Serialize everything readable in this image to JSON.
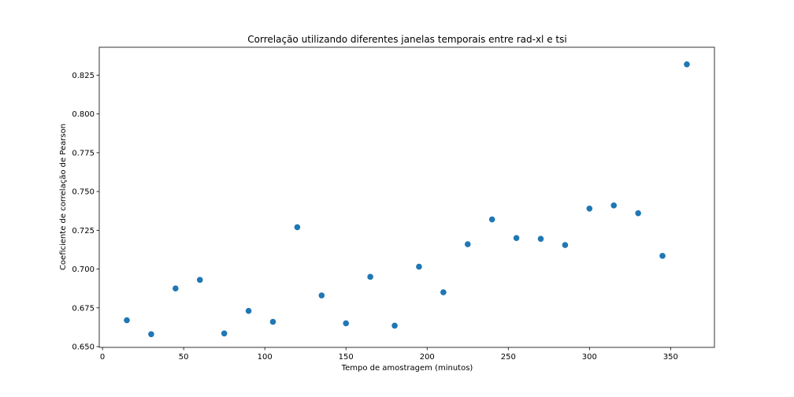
{
  "chart_data": {
    "type": "scatter",
    "title": "Correlação utilizando diferentes janelas temporais entre rad-xl e tsi",
    "xlabel": "Tempo de amostragem (minutos)",
    "ylabel": "Coeficiente de correlação de Pearson",
    "xlim": [
      -2,
      377
    ],
    "ylim": [
      0.6495,
      0.843
    ],
    "xticks": [
      0,
      50,
      100,
      150,
      200,
      250,
      300,
      350
    ],
    "xtick_labels": [
      "0",
      "50",
      "100",
      "150",
      "200",
      "250",
      "300",
      "350"
    ],
    "yticks": [
      0.65,
      0.675,
      0.7,
      0.725,
      0.75,
      0.775,
      0.8,
      0.825
    ],
    "ytick_labels": [
      "0.650",
      "0.675",
      "0.700",
      "0.725",
      "0.750",
      "0.775",
      "0.800",
      "0.825"
    ],
    "grid": false,
    "color": "#1f77b4",
    "points": [
      {
        "x": 15,
        "y": 0.667
      },
      {
        "x": 30,
        "y": 0.658
      },
      {
        "x": 45,
        "y": 0.6875
      },
      {
        "x": 60,
        "y": 0.693
      },
      {
        "x": 75,
        "y": 0.6585
      },
      {
        "x": 90,
        "y": 0.673
      },
      {
        "x": 105,
        "y": 0.666
      },
      {
        "x": 120,
        "y": 0.727
      },
      {
        "x": 135,
        "y": 0.683
      },
      {
        "x": 150,
        "y": 0.665
      },
      {
        "x": 165,
        "y": 0.695
      },
      {
        "x": 180,
        "y": 0.6635
      },
      {
        "x": 195,
        "y": 0.7015
      },
      {
        "x": 210,
        "y": 0.685
      },
      {
        "x": 225,
        "y": 0.716
      },
      {
        "x": 240,
        "y": 0.732
      },
      {
        "x": 255,
        "y": 0.72
      },
      {
        "x": 270,
        "y": 0.7195
      },
      {
        "x": 285,
        "y": 0.7155
      },
      {
        "x": 300,
        "y": 0.739
      },
      {
        "x": 315,
        "y": 0.741
      },
      {
        "x": 330,
        "y": 0.736
      },
      {
        "x": 345,
        "y": 0.7085
      },
      {
        "x": 360,
        "y": 0.832
      }
    ]
  }
}
